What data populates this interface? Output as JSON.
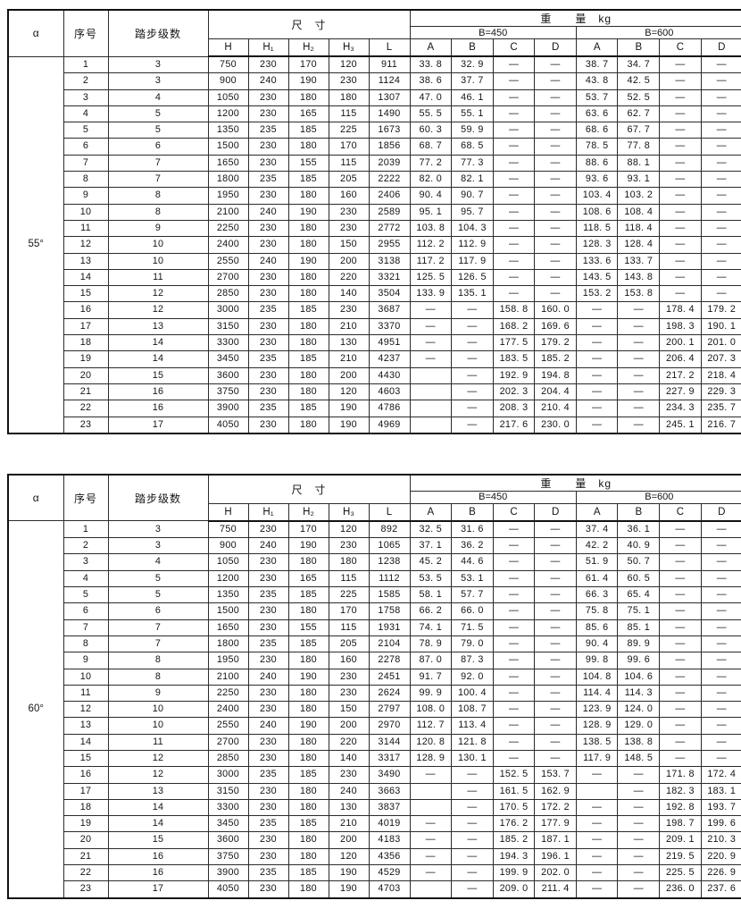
{
  "page": {
    "background": "#ffffff",
    "border_color": "#111111",
    "text_color": "#141414"
  },
  "header_labels": {
    "alpha": "α",
    "index": "序号",
    "steps": "踏步级数",
    "dimensions": "尺　寸",
    "weight": "重　　量　kg",
    "b450": "B=450",
    "b600": "B=600",
    "dim_cols": [
      "H",
      "H₁",
      "H₂",
      "H₃",
      "L"
    ],
    "weight_cols": [
      "A",
      "B",
      "C",
      "D",
      "A",
      "B",
      "C",
      "D"
    ]
  },
  "tables": [
    {
      "alpha": "55°",
      "rows": [
        [
          "1",
          "3",
          "750",
          "230",
          "170",
          "120",
          "911",
          "33. 8",
          "32. 9",
          "—",
          "—",
          "38. 7",
          "34. 7",
          "—",
          "—"
        ],
        [
          "2",
          "3",
          "900",
          "240",
          "190",
          "230",
          "1124",
          "38. 6",
          "37. 7",
          "—",
          "—",
          "43. 8",
          "42. 5",
          "—",
          "—"
        ],
        [
          "3",
          "4",
          "1050",
          "230",
          "180",
          "180",
          "1307",
          "47. 0",
          "46. 1",
          "—",
          "—",
          "53. 7",
          "52. 5",
          "—",
          "—"
        ],
        [
          "4",
          "5",
          "1200",
          "230",
          "165",
          "115",
          "1490",
          "55. 5",
          "55. 1",
          "—",
          "—",
          "63. 6",
          "62. 7",
          "—",
          "—"
        ],
        [
          "5",
          "5",
          "1350",
          "235",
          "185",
          "225",
          "1673",
          "60. 3",
          "59. 9",
          "—",
          "—",
          "68. 6",
          "67. 7",
          "—",
          "—"
        ],
        [
          "6",
          "6",
          "1500",
          "230",
          "180",
          "170",
          "1856",
          "68. 7",
          "68. 5",
          "—",
          "—",
          "78. 5",
          "77. 8",
          "—",
          "—"
        ],
        [
          "7",
          "7",
          "1650",
          "230",
          "155",
          "115",
          "2039",
          "77. 2",
          "77. 3",
          "—",
          "—",
          "88. 6",
          "88. 1",
          "—",
          "—"
        ],
        [
          "8",
          "7",
          "1800",
          "235",
          "185",
          "205",
          "2222",
          "82. 0",
          "82. 1",
          "—",
          "—",
          "93. 6",
          "93. 1",
          "—",
          "—"
        ],
        [
          "9",
          "8",
          "1950",
          "230",
          "180",
          "160",
          "2406",
          "90. 4",
          "90. 7",
          "—",
          "—",
          "103. 4",
          "103. 2",
          "—",
          "—"
        ],
        [
          "10",
          "8",
          "2100",
          "240",
          "190",
          "230",
          "2589",
          "95. 1",
          "95. 7",
          "—",
          "—",
          "108. 6",
          "108. 4",
          "—",
          "—"
        ],
        [
          "11",
          "9",
          "2250",
          "230",
          "180",
          "230",
          "2772",
          "103. 8",
          "104. 3",
          "—",
          "—",
          "118. 5",
          "118. 4",
          "—",
          "—"
        ],
        [
          "12",
          "10",
          "2400",
          "230",
          "180",
          "150",
          "2955",
          "112. 2",
          "112. 9",
          "—",
          "—",
          "128. 3",
          "128. 4",
          "—",
          "—"
        ],
        [
          "13",
          "10",
          "2550",
          "240",
          "190",
          "200",
          "3138",
          "117. 2",
          "117. 9",
          "—",
          "—",
          "133. 6",
          "133. 7",
          "—",
          "—"
        ],
        [
          "14",
          "11",
          "2700",
          "230",
          "180",
          "220",
          "3321",
          "125. 5",
          "126. 5",
          "—",
          "—",
          "143. 5",
          "143. 8",
          "—",
          "—"
        ],
        [
          "15",
          "12",
          "2850",
          "230",
          "180",
          "140",
          "3504",
          "133. 9",
          "135. 1",
          "—",
          "—",
          "153. 2",
          "153. 8",
          "—",
          "—"
        ],
        [
          "16",
          "12",
          "3000",
          "235",
          "185",
          "230",
          "3687",
          "—",
          "—",
          "158. 8",
          "160. 0",
          "—",
          "—",
          "178. 4",
          "179. 2"
        ],
        [
          "17",
          "13",
          "3150",
          "230",
          "180",
          "210",
          "3370",
          "—",
          "—",
          "168. 2",
          "169. 6",
          "—",
          "—",
          "198. 3",
          "190. 1"
        ],
        [
          "18",
          "14",
          "3300",
          "230",
          "180",
          "130",
          "4951",
          "—",
          "—",
          "177. 5",
          "179. 2",
          "—",
          "—",
          "200. 1",
          "201. 0"
        ],
        [
          "19",
          "14",
          "3450",
          "235",
          "185",
          "210",
          "4237",
          "—",
          "—",
          "183. 5",
          "185. 2",
          "—",
          "—",
          "206. 4",
          "207. 3"
        ],
        [
          "20",
          "15",
          "3600",
          "230",
          "180",
          "200",
          "4430",
          "",
          "—",
          "192. 9",
          "194. 8",
          "—",
          "—",
          "217. 2",
          "218. 4"
        ],
        [
          "21",
          "16",
          "3750",
          "230",
          "180",
          "120",
          "4603",
          "",
          "—",
          "202. 3",
          "204. 4",
          "—",
          "—",
          "227. 9",
          "229. 3"
        ],
        [
          "22",
          "16",
          "3900",
          "235",
          "185",
          "190",
          "4786",
          "",
          "—",
          "208. 3",
          "210. 4",
          "—",
          "—",
          "234. 3",
          "235. 7"
        ],
        [
          "23",
          "17",
          "4050",
          "230",
          "180",
          "190",
          "4969",
          "",
          "—",
          "217. 6",
          "230. 0",
          "—",
          "—",
          "245. 1",
          "216. 7"
        ]
      ]
    },
    {
      "alpha": "60°",
      "rows": [
        [
          "1",
          "3",
          "750",
          "230",
          "170",
          "120",
          "892",
          "32. 5",
          "31. 6",
          "—",
          "—",
          "37. 4",
          "36. 1",
          "—",
          "—"
        ],
        [
          "2",
          "3",
          "900",
          "240",
          "190",
          "230",
          "1065",
          "37. 1",
          "36. 2",
          "—",
          "—",
          "42. 2",
          "40. 9",
          "—",
          "—"
        ],
        [
          "3",
          "4",
          "1050",
          "230",
          "180",
          "180",
          "1238",
          "45. 2",
          "44. 6",
          "—",
          "—",
          "51. 9",
          "50. 7",
          "—",
          "—"
        ],
        [
          "4",
          "5",
          "1200",
          "230",
          "165",
          "115",
          "1112",
          "53. 5",
          "53. 1",
          "—",
          "—",
          "61. 4",
          "60. 5",
          "—",
          "—"
        ],
        [
          "5",
          "5",
          "1350",
          "235",
          "185",
          "225",
          "1585",
          "58. 1",
          "57. 7",
          "—",
          "—",
          "66. 3",
          "65. 4",
          "—",
          "—"
        ],
        [
          "6",
          "6",
          "1500",
          "230",
          "180",
          "170",
          "1758",
          "66. 2",
          "66. 0",
          "—",
          "—",
          "75. 8",
          "75. 1",
          "—",
          "—"
        ],
        [
          "7",
          "7",
          "1650",
          "230",
          "155",
          "115",
          "1931",
          "74. 1",
          "71. 5",
          "—",
          "—",
          "85. 6",
          "85. 1",
          "—",
          "—"
        ],
        [
          "8",
          "7",
          "1800",
          "235",
          "185",
          "205",
          "2104",
          "78. 9",
          "79. 0",
          "—",
          "—",
          "90. 4",
          "89. 9",
          "—",
          "—"
        ],
        [
          "9",
          "8",
          "1950",
          "230",
          "180",
          "160",
          "2278",
          "87. 0",
          "87. 3",
          "—",
          "—",
          "99. 8",
          "99. 6",
          "—",
          "—"
        ],
        [
          "10",
          "8",
          "2100",
          "240",
          "190",
          "230",
          "2451",
          "91. 7",
          "92. 0",
          "—",
          "—",
          "104. 8",
          "104. 6",
          "—",
          "—"
        ],
        [
          "11",
          "9",
          "2250",
          "230",
          "180",
          "230",
          "2624",
          "99. 9",
          "100. 4",
          "—",
          "—",
          "114. 4",
          "114. 3",
          "—",
          "—"
        ],
        [
          "12",
          "10",
          "2400",
          "230",
          "180",
          "150",
          "2797",
          "108. 0",
          "108. 7",
          "—",
          "—",
          "123. 9",
          "124. 0",
          "—",
          "—"
        ],
        [
          "13",
          "10",
          "2550",
          "240",
          "190",
          "200",
          "2970",
          "112. 7",
          "113. 4",
          "—",
          "—",
          "128. 9",
          "129. 0",
          "—",
          "—"
        ],
        [
          "14",
          "11",
          "2700",
          "230",
          "180",
          "220",
          "3144",
          "120. 8",
          "121. 8",
          "—",
          "—",
          "138. 5",
          "138. 8",
          "—",
          "—"
        ],
        [
          "15",
          "12",
          "2850",
          "230",
          "180",
          "140",
          "3317",
          "128. 9",
          "130. 1",
          "—",
          "—",
          "117. 9",
          "148. 5",
          "—",
          "—"
        ],
        [
          "16",
          "12",
          "3000",
          "235",
          "185",
          "230",
          "3490",
          "—",
          "—",
          "152. 5",
          "153. 7",
          "—",
          "—",
          "171. 8",
          "172. 4"
        ],
        [
          "17",
          "13",
          "3150",
          "230",
          "180",
          "240",
          "3663",
          "",
          "—",
          "161. 5",
          "162. 9",
          "",
          "—",
          "182. 3",
          "183. 1"
        ],
        [
          "18",
          "14",
          "3300",
          "230",
          "180",
          "130",
          "3837",
          "",
          "—",
          "170. 5",
          "172. 2",
          "—",
          "—",
          "192. 8",
          "193. 7"
        ],
        [
          "19",
          "14",
          "3450",
          "235",
          "185",
          "210",
          "4019",
          "—",
          "—",
          "176. 2",
          "177. 9",
          "—",
          "—",
          "198. 7",
          "199. 6"
        ],
        [
          "20",
          "15",
          "3600",
          "230",
          "180",
          "200",
          "4183",
          "—",
          "—",
          "185. 2",
          "187. 1",
          "—",
          "—",
          "209. 1",
          "210. 3"
        ],
        [
          "21",
          "16",
          "3750",
          "230",
          "180",
          "120",
          "4356",
          "—",
          "—",
          "194. 3",
          "196. 1",
          "—",
          "—",
          "219. 5",
          "220. 9"
        ],
        [
          "22",
          "16",
          "3900",
          "235",
          "185",
          "190",
          "4529",
          "—",
          "—",
          "199. 9",
          "202. 0",
          "—",
          "—",
          "225. 5",
          "226. 9"
        ],
        [
          "23",
          "17",
          "4050",
          "230",
          "180",
          "190",
          "4703",
          "",
          "—",
          "209. 0",
          "211. 4",
          "—",
          "—",
          "236. 0",
          "237. 6"
        ]
      ]
    }
  ]
}
